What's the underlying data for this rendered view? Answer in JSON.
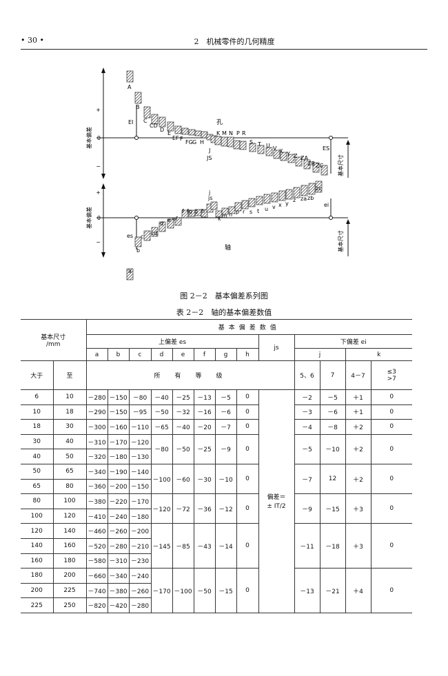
{
  "header": {
    "page_number": "• 30 •",
    "chapter": "2　机械零件的几何精度"
  },
  "figure": {
    "caption": "图 2－2　基本偏差系列图",
    "hole": {
      "y_axis": "基本偏差",
      "plus": "+",
      "zero": "0",
      "minus": "−",
      "label": "孔",
      "dev_lower": "EI",
      "dev_upper": "ES",
      "size": "基本尺寸",
      "letters": [
        "A",
        "B",
        "C",
        "CD",
        "D",
        "E",
        "EF",
        "F",
        "FG",
        "G",
        "H",
        "JS",
        "J",
        "K",
        "M",
        "N",
        "P",
        "R",
        "S",
        "T",
        "U",
        "V",
        "X",
        "Y",
        "Z",
        "ZA",
        "ZB",
        "ZC"
      ]
    },
    "shaft": {
      "y_axis": "基本偏差",
      "plus": "+",
      "zero": "0",
      "minus": "−",
      "label": "轴",
      "dev_upper": "es",
      "dev_lower": "ei",
      "size": "基本尺寸",
      "letters": [
        "a",
        "b",
        "c",
        "cd",
        "d",
        "e",
        "ef",
        "f",
        "fg",
        "g",
        "h",
        "js",
        "j",
        "k",
        "m",
        "n",
        "p",
        "r",
        "s",
        "t",
        "u",
        "v",
        "x",
        "y",
        "z",
        "za",
        "zb",
        "zc"
      ]
    }
  },
  "table": {
    "caption": "表 2－2　轴的基本偏差数值",
    "h_size": "基本尺寸",
    "h_unit": "/mm",
    "h_values": "基本偏差数值",
    "h_upper": "上偏差 es",
    "h_lower": "下偏差 ei",
    "h_js": "js",
    "cols_upper": [
      "a",
      "b",
      "c",
      "d",
      "e",
      "f",
      "g",
      "h"
    ],
    "col_j": "j",
    "col_k": "k",
    "h_over": "大于",
    "h_to": "至",
    "h_all_grades": "所　有　等　级",
    "g_j1": "5、6",
    "g_j2": "7",
    "g_k1": "4－7",
    "g_k2a": "≤3",
    "g_k2b": ">7",
    "js_value_1": "偏差＝",
    "js_value_2": "± IT/2",
    "rows": [
      {
        "over": "6",
        "to": "10",
        "a": "－280",
        "b": "－150",
        "c": "－80",
        "d": "－40",
        "e": "－25",
        "f": "－13",
        "g": "－5",
        "h": "0",
        "j56": "－2",
        "j7": "－5",
        "k47": "＋1",
        "k3": "0"
      },
      {
        "over": "10",
        "to": "18",
        "a": "－290",
        "b": "－150",
        "c": "－95",
        "d": "－50",
        "e": "－32",
        "f": "－16",
        "g": "－6",
        "h": "0",
        "j56": "－3",
        "j7": "－6",
        "k47": "＋1",
        "k3": "0"
      },
      {
        "over": "18",
        "to": "30",
        "a": "－300",
        "b": "－160",
        "c": "－110",
        "d": "－65",
        "e": "－40",
        "f": "－20",
        "g": "－7",
        "h": "0",
        "j56": "－4",
        "j7": "－8",
        "k47": "＋2",
        "k3": "0"
      },
      {
        "over": "30",
        "to": "40",
        "a": "－310",
        "b": "－170",
        "c": "－120"
      },
      {
        "over": "40",
        "to": "50",
        "a": "－320",
        "b": "－180",
        "c": "－130"
      },
      {
        "over": "50",
        "to": "65",
        "a": "－340",
        "b": "－190",
        "c": "－140"
      },
      {
        "over": "65",
        "to": "80",
        "a": "－360",
        "b": "－200",
        "c": "－150"
      },
      {
        "over": "80",
        "to": "100",
        "a": "－380",
        "b": "－220",
        "c": "－170"
      },
      {
        "over": "100",
        "to": "120",
        "a": "－410",
        "b": "－240",
        "c": "－180"
      },
      {
        "over": "120",
        "to": "140",
        "a": "－460",
        "b": "－260",
        "c": "－200"
      },
      {
        "over": "140",
        "to": "160",
        "a": "－520",
        "b": "－280",
        "c": "－210"
      },
      {
        "over": "160",
        "to": "180",
        "a": "－580",
        "b": "－310",
        "c": "－230"
      },
      {
        "over": "180",
        "to": "200",
        "a": "－660",
        "b": "－340",
        "c": "－240"
      },
      {
        "over": "200",
        "to": "225",
        "a": "－740",
        "b": "－380",
        "c": "－260"
      },
      {
        "over": "225",
        "to": "250",
        "a": "－820",
        "b": "－420",
        "c": "－280"
      }
    ],
    "groups": [
      {
        "d": "－80",
        "e": "－50",
        "f": "－25",
        "g": "－9",
        "h": "0",
        "j56": "－5",
        "j7": "－10",
        "k47": "＋2",
        "k3": "0"
      },
      {
        "d": "－100",
        "e": "－60",
        "f": "－30",
        "g": "－10",
        "h": "0",
        "j56": "－7",
        "j7": "12",
        "k47": "＋2",
        "k3": "0"
      },
      {
        "d": "－120",
        "e": "－72",
        "f": "－36",
        "g": "－12",
        "h": "0",
        "j56": "－9",
        "j7": "－15",
        "k47": "＋3",
        "k3": "0"
      },
      {
        "d": "－145",
        "e": "－85",
        "f": "－43",
        "g": "－14",
        "h": "0",
        "j56": "－11",
        "j7": "－18",
        "k47": "＋3",
        "k3": "0"
      },
      {
        "d": "－170",
        "e": "－100",
        "f": "－50",
        "g": "－15",
        "h": "0",
        "j56": "－13",
        "j7": "－21",
        "k47": "＋4",
        "k3": "0"
      }
    ]
  }
}
